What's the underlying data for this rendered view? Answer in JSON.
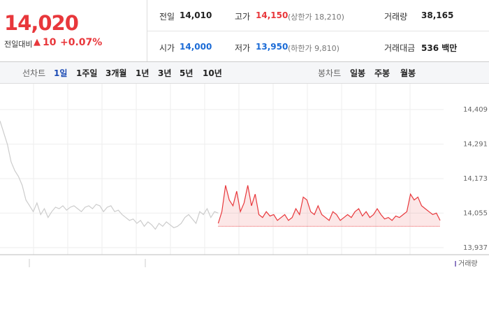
{
  "quote": {
    "price": "14,020",
    "change_label": "전일대비",
    "change": "10",
    "percent": "+0.07%"
  },
  "stats": {
    "prev_label": "전일",
    "prev": "14,010",
    "high_label": "고가",
    "high": "14,150",
    "upper_limit": "(상한가 18,210)",
    "volume_label": "거래량",
    "volume": "38,165",
    "open_label": "시가",
    "open": "14,000",
    "low_label": "저가",
    "low": "13,950",
    "lower_limit": "(하한가 9,810)",
    "amount_label": "거래대금",
    "amount": "536 백만"
  },
  "tabs": {
    "line_label": "선차트",
    "line_items": [
      "1일",
      "1주일",
      "3개월",
      "1년",
      "3년",
      "5년",
      "10년"
    ],
    "candle_label": "봉차트",
    "candle_items": [
      "일봉",
      "주봉",
      "월봉"
    ]
  },
  "chart_data": {
    "type": "line",
    "reference": 14010,
    "ylim": [
      13913,
      14478
    ],
    "yticks": [
      {
        "value": 13937,
        "label": "13,937"
      },
      {
        "value": 14055,
        "label": "14,055"
      },
      {
        "value": 14173,
        "label": "14,173"
      },
      {
        "value": 14291,
        "label": "14,291"
      },
      {
        "value": 14409,
        "label": "14,409"
      }
    ],
    "grid": true,
    "legend": "거래량",
    "series": [
      {
        "color": "#cccccc",
        "values": [
          14370,
          14330,
          14290,
          14230,
          14200,
          14180,
          14150,
          14100,
          14080,
          14060,
          14090,
          14050,
          14070,
          14040,
          14060,
          14075,
          14070,
          14080,
          14065,
          14075,
          14080,
          14070,
          14060,
          14075,
          14080,
          14070,
          14085,
          14080,
          14060,
          14075,
          14080,
          14060,
          14065,
          14050,
          14040,
          14030,
          14035,
          14020,
          14030,
          14010,
          14025,
          14015,
          14000,
          14020,
          14010,
          14025,
          14015,
          14005,
          14010,
          14020,
          14040,
          14050,
          14035,
          14020,
          14060,
          14050,
          14070,
          14040,
          14060,
          14055,
          null,
          null,
          null,
          null,
          null,
          null,
          null,
          null,
          null,
          null,
          null,
          null,
          null,
          null,
          null,
          null,
          null,
          null,
          null,
          null,
          null,
          null,
          null,
          null,
          null,
          null,
          null,
          null,
          null,
          null,
          null,
          null,
          null,
          null,
          null,
          null,
          null,
          null,
          null,
          null,
          null,
          null,
          null,
          null,
          null,
          null,
          null,
          null,
          null,
          null,
          null,
          null,
          null,
          null,
          null,
          null,
          null,
          null,
          null,
          null
        ]
      },
      {
        "color": "#e8373b",
        "values": [
          null,
          null,
          null,
          null,
          null,
          null,
          null,
          null,
          null,
          null,
          null,
          null,
          null,
          null,
          null,
          null,
          null,
          null,
          null,
          null,
          null,
          null,
          null,
          null,
          null,
          null,
          null,
          null,
          null,
          null,
          null,
          null,
          null,
          null,
          null,
          null,
          null,
          null,
          null,
          null,
          null,
          null,
          null,
          null,
          null,
          null,
          null,
          null,
          null,
          null,
          null,
          null,
          null,
          null,
          null,
          null,
          null,
          null,
          null,
          14020,
          14060,
          14150,
          14100,
          14080,
          14130,
          14060,
          14090,
          14150,
          14080,
          14120,
          14050,
          14040,
          14060,
          14045,
          14050,
          14030,
          14040,
          14050,
          14030,
          14040,
          14070,
          14050,
          14110,
          14100,
          14060,
          14050,
          14080,
          14050,
          14040,
          14030,
          14060,
          14050,
          14030,
          14040,
          14050,
          14040,
          14060,
          14070,
          14045,
          14060,
          14040,
          14050,
          14070,
          14050,
          14035,
          14040,
          14030,
          14045,
          14040,
          14050,
          14060,
          14120,
          14100,
          14110,
          14080,
          14070,
          14060,
          14050,
          14055,
          14030
        ]
      }
    ]
  }
}
